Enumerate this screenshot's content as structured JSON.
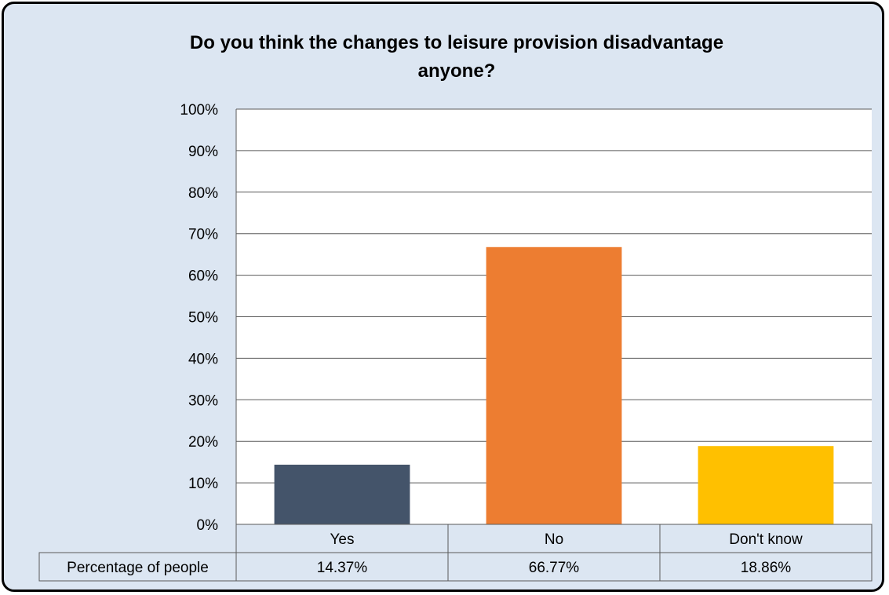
{
  "chart_data": {
    "type": "bar",
    "title": "Do you think the changes to leisure provision disadvantage anyone?",
    "title_lines": [
      "Do you think the changes to leisure provision disadvantage",
      "anyone?"
    ],
    "categories": [
      "Yes",
      "No",
      "Don't know"
    ],
    "series": [
      {
        "name": "Percentage of people",
        "values": [
          14.37,
          66.77,
          18.86
        ]
      }
    ],
    "value_labels": [
      "14.37%",
      "66.77%",
      "18.86%"
    ],
    "bar_colors": [
      "#44546a",
      "#ed7d31",
      "#ffc000"
    ],
    "ylim": [
      0,
      100
    ],
    "yticks": [
      "0%",
      "10%",
      "20%",
      "30%",
      "40%",
      "50%",
      "60%",
      "70%",
      "80%",
      "90%",
      "100%"
    ],
    "grid": true,
    "legend": "data-table",
    "background": "#dce6f2",
    "plot_background": "#ffffff"
  }
}
